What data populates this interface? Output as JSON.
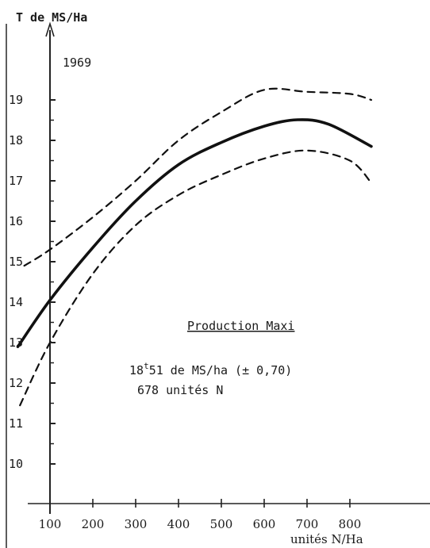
{
  "chart_data": {
    "type": "line",
    "ylabel": "T de MS/Ha",
    "xlabel": "unités N/Ha",
    "year_label": "1969",
    "xlim": [
      0,
      850
    ],
    "ylim": [
      9.5,
      20.2
    ],
    "x_ticks": [
      100,
      200,
      300,
      400,
      500,
      600,
      700,
      800
    ],
    "x_tick_labels": [
      "100",
      "200",
      "300",
      "400",
      "500",
      "600",
      "700",
      "800"
    ],
    "y_ticks": [
      10,
      11,
      12,
      13,
      14,
      15,
      16,
      17,
      18,
      19
    ],
    "y_tick_labels": [
      "10",
      "11",
      "12",
      "13",
      "14",
      "15",
      "16",
      "17",
      "18",
      "19"
    ],
    "grid": false,
    "series": [
      {
        "style": "solid",
        "x": [
          25,
          100,
          200,
          300,
          400,
          500,
          600,
          678,
          750,
          850
        ],
        "y": [
          12.9,
          14.05,
          15.35,
          16.5,
          17.4,
          17.95,
          18.35,
          18.51,
          18.4,
          17.85
        ]
      },
      {
        "style": "dashed-upper",
        "x": [
          40,
          100,
          200,
          300,
          400,
          500,
          600,
          700,
          800,
          850
        ],
        "y": [
          14.9,
          15.3,
          16.1,
          17.0,
          18.0,
          18.7,
          19.25,
          19.2,
          19.15,
          19.0
        ]
      },
      {
        "style": "dashed-lower",
        "x": [
          30,
          100,
          200,
          300,
          400,
          500,
          600,
          700,
          800,
          850
        ],
        "y": [
          11.45,
          13.0,
          14.7,
          15.9,
          16.65,
          17.15,
          17.55,
          17.75,
          17.5,
          16.95
        ]
      }
    ],
    "annotations": {
      "heading": "Production Maxi",
      "line1_base": "18",
      "line1_sup": "t",
      "line1_rest": "51 de MS/ha (± 0,70)",
      "line2": "678 unités N"
    }
  }
}
